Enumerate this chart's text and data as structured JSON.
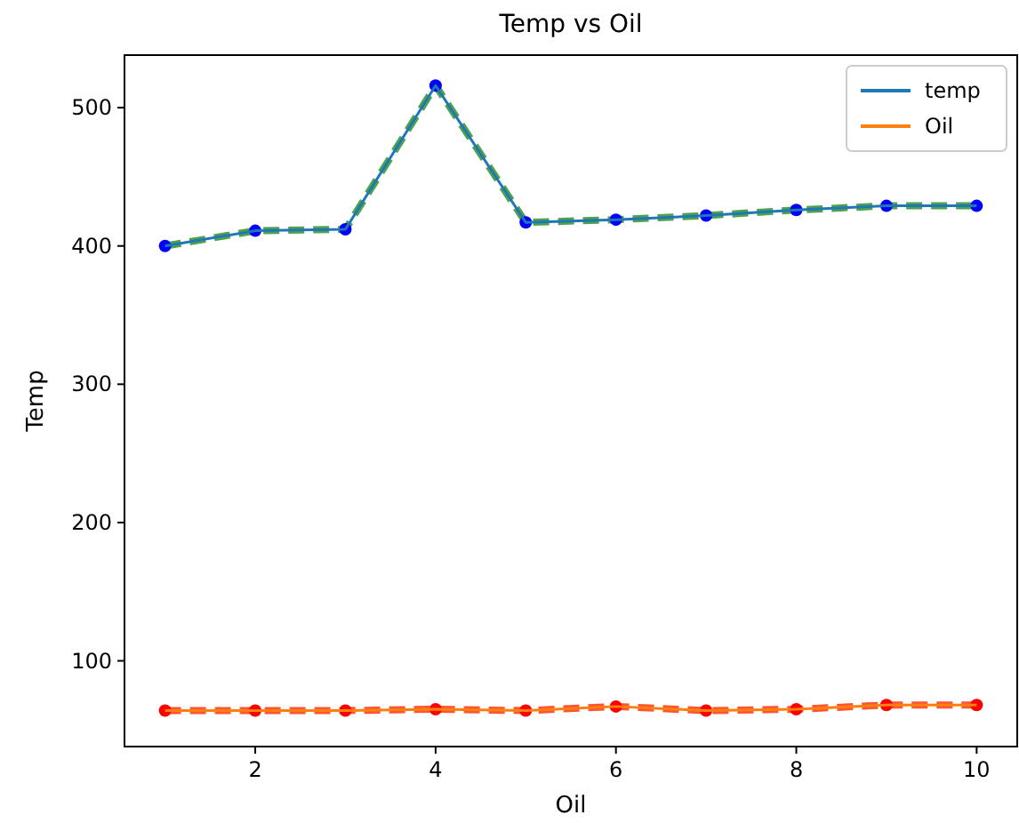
{
  "chart_data": {
    "type": "line",
    "title": "Temp vs Oil",
    "xlabel": "Oil",
    "ylabel": "Temp",
    "x": [
      1,
      2,
      3,
      4,
      5,
      6,
      7,
      8,
      9,
      10
    ],
    "xlim": [
      0.55,
      10.45
    ],
    "xticks": [
      2,
      4,
      6,
      8,
      10
    ],
    "ylim": [
      38,
      538
    ],
    "yticks": [
      100,
      200,
      300,
      400,
      500
    ],
    "legend": "top right",
    "series": [
      {
        "color": "#228b22",
        "line_style": "dashed",
        "marker": "none",
        "values": [
          400,
          411,
          412,
          516,
          417,
          419,
          422,
          426,
          429,
          429
        ]
      },
      {
        "type": "scatter",
        "color": "#0000ff",
        "marker": "circle",
        "values": [
          400,
          411,
          412,
          516,
          417,
          419,
          422,
          426,
          429,
          429
        ]
      },
      {
        "name": "temp",
        "color": "#1f77b4",
        "line_style": "solid",
        "marker": "none",
        "values": [
          400,
          411,
          412,
          516,
          417,
          419,
          422,
          426,
          429,
          429
        ]
      },
      {
        "color": "#ff2a00",
        "line_style": "dashed",
        "marker": "none",
        "values": [
          64,
          64,
          64,
          65,
          64,
          67,
          64,
          65,
          68,
          68
        ]
      },
      {
        "type": "scatter",
        "color": "#ff0000",
        "marker": "circle",
        "values": [
          64,
          64,
          64,
          65,
          64,
          67,
          64,
          65,
          68,
          68
        ]
      },
      {
        "name": "Oil",
        "color": "#ff7f0e",
        "line_style": "solid",
        "marker": "none",
        "values": [
          64,
          64,
          64,
          65,
          64,
          67,
          64,
          65,
          68,
          68
        ]
      }
    ]
  }
}
